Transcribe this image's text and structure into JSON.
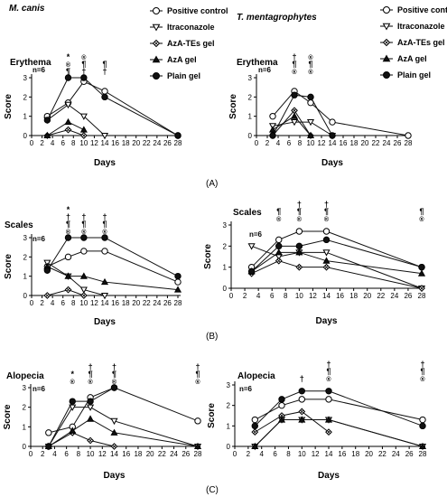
{
  "legend": [
    {
      "label": "Positive control",
      "marker": "open-circle"
    },
    {
      "label": "Itraconazole",
      "marker": "open-triangle-down"
    },
    {
      "label": "AzA-TEs gel",
      "marker": "crossed-diamond"
    },
    {
      "label": "AzA gel",
      "marker": "filled-triangle"
    },
    {
      "label": "Plain gel",
      "marker": "filled-circle"
    }
  ],
  "panels": [
    {
      "label": "(A)"
    },
    {
      "label": "(B)"
    },
    {
      "label": "(C)"
    }
  ],
  "chart_data": [
    {
      "type": "line",
      "title": "M. canis",
      "metric": "Erythema",
      "n_label": "n=6",
      "xlabel": "Days",
      "ylabel": "Score",
      "x_ticks": [
        0,
        2,
        4,
        6,
        8,
        10,
        12,
        14,
        16,
        18,
        20,
        22,
        24,
        26,
        28
      ],
      "y_ticks": [
        0,
        1,
        2,
        3
      ],
      "xlim": [
        0,
        28
      ],
      "ylim": [
        0,
        3
      ],
      "series": [
        {
          "name": "Positive control",
          "x": [
            3,
            7,
            10,
            14,
            28
          ],
          "y": [
            1.0,
            1.7,
            2.8,
            2.3,
            0
          ]
        },
        {
          "name": "Itraconazole",
          "x": [
            3,
            7,
            10,
            14
          ],
          "y": [
            0.8,
            1.6,
            1.0,
            0
          ]
        },
        {
          "name": "AzA-TEs gel",
          "x": [
            3,
            7,
            10
          ],
          "y": [
            0,
            0.3,
            0
          ]
        },
        {
          "name": "AzA gel",
          "x": [
            3,
            7,
            10
          ],
          "y": [
            0,
            0.7,
            0.3
          ]
        },
        {
          "name": "Plain gel",
          "x": [
            3,
            7,
            10,
            14,
            28
          ],
          "y": [
            0.8,
            3.0,
            3.0,
            2.0,
            0
          ]
        }
      ],
      "annotations": [
        {
          "x": 7,
          "symbols": [
            "*",
            "®",
            "¶"
          ]
        },
        {
          "x": 10,
          "symbols": [
            "®",
            "¶",
            "†"
          ]
        },
        {
          "x": 14,
          "symbols": [
            "¶",
            "†"
          ]
        }
      ]
    },
    {
      "type": "line",
      "title": "T. mentagrophytes",
      "metric": "Erythema",
      "n_label": "n=6",
      "xlabel": "Days",
      "ylabel": "Score",
      "x_ticks": [
        0,
        2,
        4,
        6,
        8,
        10,
        12,
        14,
        16,
        18,
        20,
        22,
        24,
        26,
        28
      ],
      "y_ticks": [
        0,
        1,
        2,
        3
      ],
      "xlim": [
        0,
        28
      ],
      "ylim": [
        0,
        3
      ],
      "series": [
        {
          "name": "Positive control",
          "x": [
            3,
            7,
            10,
            14,
            28
          ],
          "y": [
            1.0,
            2.3,
            1.7,
            0.7,
            0
          ]
        },
        {
          "name": "Itraconazole",
          "x": [
            3,
            7,
            10,
            14
          ],
          "y": [
            0.5,
            0.7,
            0.7,
            0
          ]
        },
        {
          "name": "AzA-TEs gel",
          "x": [
            3,
            7,
            10
          ],
          "y": [
            0,
            1.3,
            0
          ]
        },
        {
          "name": "AzA gel",
          "x": [
            3,
            7,
            10
          ],
          "y": [
            0.3,
            1.0,
            0
          ]
        },
        {
          "name": "Plain gel",
          "x": [
            3,
            7,
            10,
            14
          ],
          "y": [
            0,
            2.1,
            2.0,
            0
          ]
        }
      ],
      "annotations": [
        {
          "x": 7,
          "symbols": [
            "†",
            "¶",
            "®"
          ]
        },
        {
          "x": 10,
          "symbols": [
            "®",
            "¶",
            "®"
          ]
        }
      ]
    },
    {
      "type": "line",
      "title": "",
      "metric": "Scales",
      "n_label": "n=6",
      "xlabel": "Days",
      "ylabel": "Score",
      "x_ticks": [
        0,
        2,
        4,
        6,
        8,
        10,
        12,
        14,
        16,
        18,
        20,
        22,
        24,
        26,
        28
      ],
      "y_ticks": [
        0,
        1,
        2,
        3
      ],
      "xlim": [
        0,
        28
      ],
      "ylim": [
        0,
        3
      ],
      "series": [
        {
          "name": "Positive control",
          "x": [
            3,
            7,
            10,
            14,
            28
          ],
          "y": [
            1.5,
            2.0,
            2.3,
            2.3,
            0.7
          ]
        },
        {
          "name": "Itraconazole",
          "x": [
            3,
            7,
            10,
            14
          ],
          "y": [
            1.7,
            1.0,
            0.3,
            0
          ]
        },
        {
          "name": "AzA-TEs gel",
          "x": [
            3,
            7,
            10
          ],
          "y": [
            0,
            0.3,
            0
          ]
        },
        {
          "name": "AzA gel",
          "x": [
            3,
            7,
            10,
            14,
            28
          ],
          "y": [
            1.5,
            1.0,
            1.0,
            0.7,
            0.3
          ]
        },
        {
          "name": "Plain gel",
          "x": [
            3,
            7,
            10,
            14,
            28
          ],
          "y": [
            1.3,
            3.0,
            3.0,
            3.0,
            1.0
          ]
        }
      ],
      "annotations": [
        {
          "x": 7,
          "symbols": [
            "*",
            "†",
            "¶",
            "®"
          ]
        },
        {
          "x": 10,
          "symbols": [
            "†",
            "¶",
            "®"
          ]
        },
        {
          "x": 14,
          "symbols": [
            "†",
            "¶",
            "®"
          ]
        }
      ]
    },
    {
      "type": "line",
      "title": "",
      "metric": "Scales",
      "n_label": "n=6",
      "xlabel": "Days",
      "ylabel": "Score",
      "x_ticks": [
        0,
        2,
        4,
        6,
        8,
        10,
        12,
        14,
        16,
        18,
        20,
        22,
        24,
        26,
        28
      ],
      "y_ticks": [
        0,
        1,
        2,
        3
      ],
      "xlim": [
        0,
        28
      ],
      "ylim": [
        0,
        3
      ],
      "series": [
        {
          "name": "Positive control",
          "x": [
            3,
            7,
            10,
            14,
            28
          ],
          "y": [
            1.0,
            2.3,
            2.7,
            2.7,
            1.0
          ]
        },
        {
          "name": "Itraconazole",
          "x": [
            3,
            7,
            10,
            14,
            28
          ],
          "y": [
            2.0,
            1.5,
            1.7,
            1.7,
            0
          ]
        },
        {
          "name": "AzA-TEs gel",
          "x": [
            3,
            7,
            10,
            14,
            28
          ],
          "y": [
            0.7,
            1.3,
            1.0,
            1.0,
            0
          ]
        },
        {
          "name": "AzA gel",
          "x": [
            3,
            7,
            10,
            14,
            28
          ],
          "y": [
            0.8,
            1.7,
            1.7,
            1.3,
            0.7
          ]
        },
        {
          "name": "Plain gel",
          "x": [
            3,
            7,
            10,
            14,
            28
          ],
          "y": [
            0.8,
            2.0,
            2.0,
            2.3,
            1.0
          ]
        }
      ],
      "annotations": [
        {
          "x": 7,
          "symbols": [
            "¶",
            "®"
          ]
        },
        {
          "x": 10,
          "symbols": [
            "†",
            "¶",
            "®"
          ]
        },
        {
          "x": 14,
          "symbols": [
            "†",
            "¶",
            "®"
          ]
        },
        {
          "x": 28,
          "symbols": [
            "¶",
            "®"
          ]
        }
      ]
    },
    {
      "type": "line",
      "title": "",
      "metric": "Alopecia",
      "n_label": "n=6",
      "xlabel": "Days",
      "ylabel": "Score",
      "x_ticks": [
        0,
        2,
        4,
        6,
        8,
        10,
        12,
        14,
        16,
        18,
        20,
        22,
        24,
        26,
        28
      ],
      "y_ticks": [
        0,
        1,
        2,
        3
      ],
      "xlim": [
        0,
        28
      ],
      "ylim": [
        0,
        3
      ],
      "series": [
        {
          "name": "Positive control",
          "x": [
            3,
            7,
            10,
            14,
            28
          ],
          "y": [
            0.7,
            1.0,
            2.5,
            3.0,
            1.3
          ]
        },
        {
          "name": "Itraconazole",
          "x": [
            3,
            7,
            10,
            14,
            28
          ],
          "y": [
            0,
            2.0,
            2.0,
            1.3,
            0
          ]
        },
        {
          "name": "AzA-TEs gel",
          "x": [
            3,
            7,
            10,
            14
          ],
          "y": [
            0,
            0.7,
            0.3,
            0
          ]
        },
        {
          "name": "AzA gel",
          "x": [
            3,
            7,
            10,
            14,
            28
          ],
          "y": [
            0,
            0.8,
            1.4,
            0.7,
            0
          ]
        },
        {
          "name": "Plain gel",
          "x": [
            3,
            7,
            10,
            14
          ],
          "y": [
            0,
            2.3,
            2.3,
            3.0
          ]
        }
      ],
      "annotations": [
        {
          "x": 7,
          "symbols": [
            "*",
            "®"
          ]
        },
        {
          "x": 10,
          "symbols": [
            "†",
            "¶",
            "®"
          ]
        },
        {
          "x": 14,
          "symbols": [
            "†",
            "¶",
            "®"
          ]
        },
        {
          "x": 28,
          "symbols": [
            "†",
            "¶",
            "®"
          ]
        }
      ]
    },
    {
      "type": "line",
      "title": "",
      "metric": "Alopecia",
      "n_label": "n=6",
      "xlabel": "Days",
      "ylabel": "Score",
      "x_ticks": [
        0,
        2,
        4,
        6,
        8,
        10,
        12,
        14,
        16,
        18,
        20,
        22,
        24,
        26,
        28
      ],
      "y_ticks": [
        0,
        1,
        2,
        3
      ],
      "xlim": [
        0,
        28
      ],
      "ylim": [
        0,
        3
      ],
      "series": [
        {
          "name": "Positive control",
          "x": [
            3,
            7,
            10,
            14,
            28
          ],
          "y": [
            1.3,
            2.0,
            2.3,
            2.3,
            1.3
          ]
        },
        {
          "name": "Itraconazole",
          "x": [
            3,
            7,
            10,
            14,
            28
          ],
          "y": [
            0,
            1.3,
            1.3,
            1.3,
            0
          ]
        },
        {
          "name": "AzA-TEs gel",
          "x": [
            3,
            7,
            10,
            14
          ],
          "y": [
            0.7,
            1.5,
            1.7,
            0.7
          ]
        },
        {
          "name": "AzA gel",
          "x": [
            3,
            7,
            10,
            14,
            28
          ],
          "y": [
            0,
            1.3,
            1.3,
            1.3,
            0
          ]
        },
        {
          "name": "Plain gel",
          "x": [
            3,
            7,
            10,
            14,
            28
          ],
          "y": [
            1.0,
            2.3,
            2.7,
            2.7,
            1.0
          ]
        }
      ],
      "annotations": [
        {
          "x": 10,
          "symbols": [
            "†"
          ]
        },
        {
          "x": 14,
          "symbols": [
            "†",
            "¶",
            "®"
          ]
        },
        {
          "x": 28,
          "symbols": [
            "†",
            "¶",
            "®"
          ]
        }
      ]
    }
  ]
}
